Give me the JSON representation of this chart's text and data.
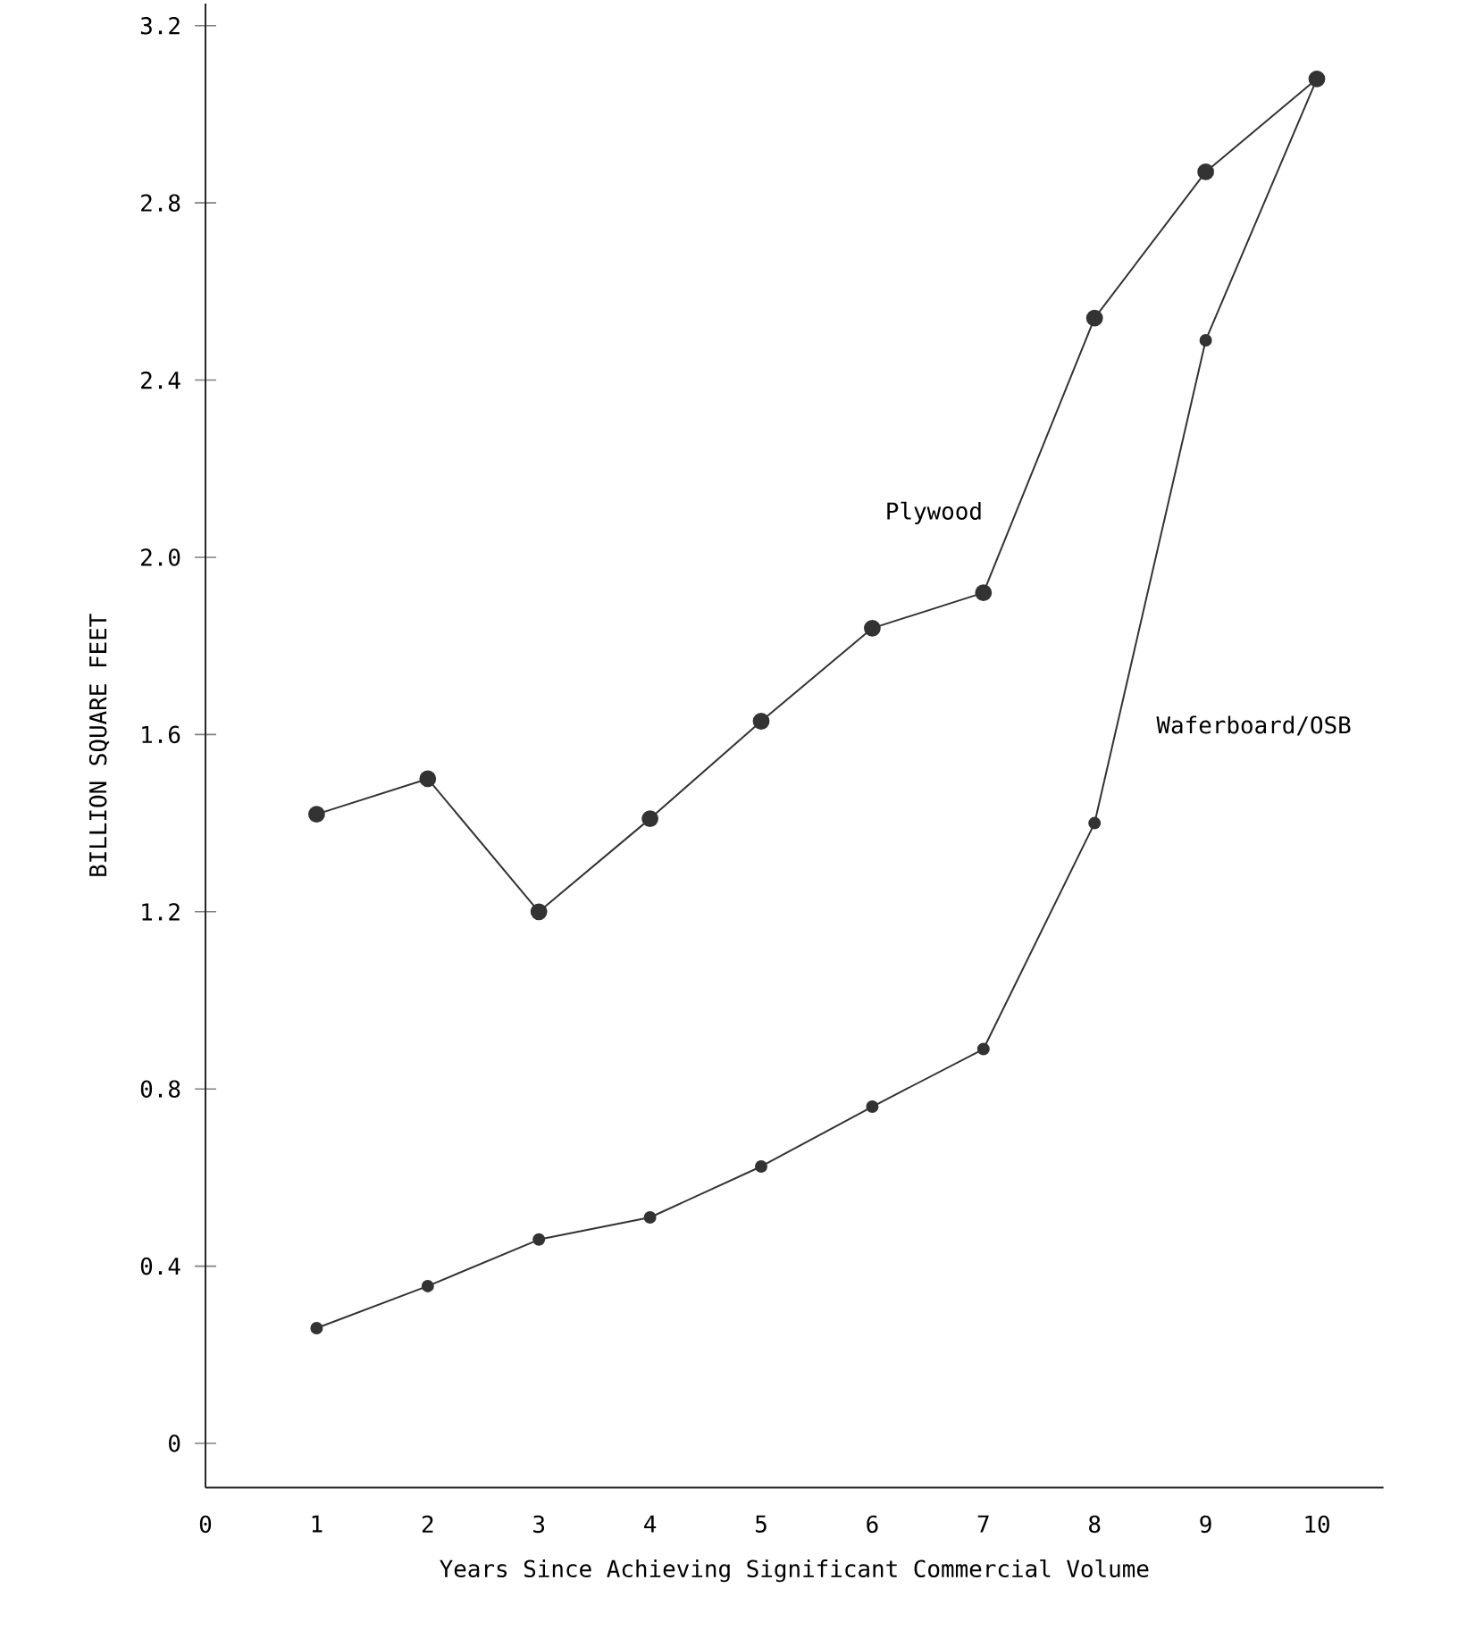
{
  "chart_data": {
    "type": "line",
    "xlabel": "Years Since Achieving Significant Commercial Volume",
    "ylabel": "BILLION SQUARE FEET",
    "x": [
      1,
      2,
      3,
      4,
      5,
      6,
      7,
      8,
      9,
      10
    ],
    "series": [
      {
        "name": "Plywood",
        "color": "#333333",
        "values": [
          1.42,
          1.5,
          1.2,
          1.41,
          1.63,
          1.84,
          1.92,
          2.54,
          2.87,
          3.08
        ]
      },
      {
        "name": "Waferboard/OSB",
        "color": "#333333",
        "values": [
          0.26,
          0.355,
          0.46,
          0.51,
          0.625,
          0.76,
          0.89,
          1.4,
          2.49,
          3.08
        ]
      }
    ],
    "xlim": [
      0,
      10.6
    ],
    "ylim": [
      -0.1,
      3.25
    ],
    "xticks": [
      0,
      1,
      2,
      3,
      4,
      5,
      6,
      7,
      8,
      9,
      10
    ],
    "yticks": [
      0,
      {
        "value": 0.4,
        "label": "0.4"
      },
      {
        "value": 0.8,
        "label": "0.8"
      },
      {
        "value": 1.2,
        "label": "1.2"
      },
      {
        "value": 1.6,
        "label": "1.6"
      },
      {
        "value": 2.0,
        "label": "2.0"
      },
      {
        "value": 2.4,
        "label": "2.4"
      },
      {
        "value": 2.8,
        "label": "2.8"
      },
      {
        "value": 3.2,
        "label": "3.2"
      }
    ],
    "marker": "circle",
    "line_style": "solid",
    "grid": false,
    "legend": false
  }
}
